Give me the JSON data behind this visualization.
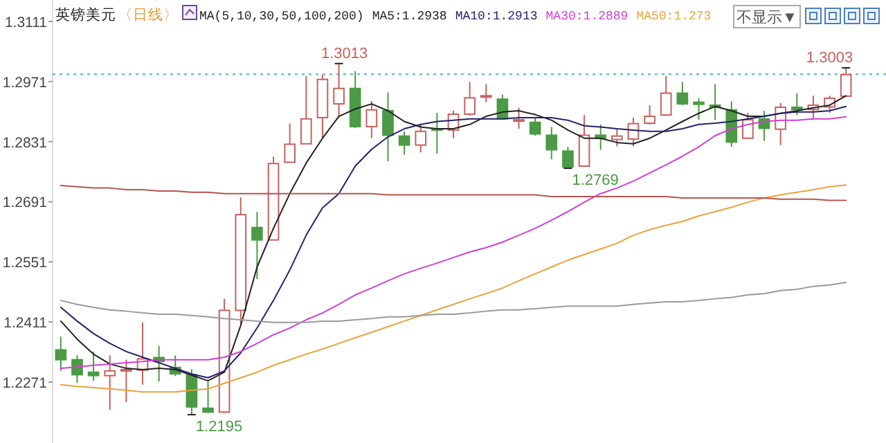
{
  "chart_data": {
    "type": "candlestick",
    "title": "英镑美元",
    "subtitle": "〈日线〉",
    "legend_title": "MA(5,10,30,50,100,200)",
    "legend": "top",
    "categories": [
      null,
      null,
      null,
      null,
      null,
      null,
      null,
      null,
      null,
      null,
      null,
      null,
      null,
      null,
      null,
      null,
      null,
      null,
      null,
      null,
      null,
      null,
      null,
      null,
      null,
      null,
      null,
      null,
      null,
      null,
      null,
      null,
      null,
      null,
      null,
      null,
      null,
      null,
      null,
      null,
      null,
      null,
      null,
      null,
      null,
      null,
      null,
      null,
      null
    ],
    "ohlc": [
      [
        1.2346,
        1.2377,
        1.2297,
        1.2323
      ],
      [
        1.2323,
        1.2333,
        1.2269,
        1.2288
      ],
      [
        1.2294,
        1.2342,
        1.2274,
        1.2286
      ],
      [
        1.2286,
        1.2333,
        1.2206,
        1.2297
      ],
      [
        1.2297,
        1.2323,
        1.2224,
        1.23
      ],
      [
        1.2299,
        1.241,
        1.2265,
        1.2325
      ],
      [
        1.2328,
        1.2355,
        1.2272,
        1.2319
      ],
      [
        1.2305,
        1.2333,
        1.2285,
        1.229
      ],
      [
        1.2288,
        1.2301,
        1.2195,
        1.2213
      ],
      [
        1.221,
        1.2272,
        1.2199,
        1.2201
      ],
      [
        1.2201,
        1.2465,
        1.2199,
        1.2438
      ],
      [
        1.2438,
        1.2701,
        1.2406,
        1.2661
      ],
      [
        1.2631,
        1.2667,
        1.2511,
        1.2602
      ],
      [
        1.2602,
        1.2796,
        1.2602,
        1.278
      ],
      [
        1.2783,
        1.2873,
        1.2783,
        1.2825
      ],
      [
        1.2826,
        1.2984,
        1.2826,
        1.2884
      ],
      [
        1.2887,
        1.2987,
        1.2839,
        1.2976
      ],
      [
        1.2919,
        1.3013,
        1.2887,
        1.2955
      ],
      [
        1.2955,
        1.2995,
        1.2863,
        1.2866
      ],
      [
        1.2866,
        1.2926,
        1.2839,
        1.2905
      ],
      [
        1.2903,
        1.2946,
        1.2785,
        1.2846
      ],
      [
        1.2844,
        1.2855,
        1.2801,
        1.2823
      ],
      [
        1.2823,
        1.2871,
        1.2806,
        1.2855
      ],
      [
        1.2861,
        1.2898,
        1.2803,
        1.2858
      ],
      [
        1.2858,
        1.2904,
        1.2839,
        1.2895
      ],
      [
        1.2895,
        1.297,
        1.2892,
        1.2933
      ],
      [
        1.2936,
        1.2965,
        1.2923,
        1.2938
      ],
      [
        1.293,
        1.2941,
        1.2882,
        1.2884
      ],
      [
        1.2879,
        1.291,
        1.2861,
        1.2882
      ],
      [
        1.2876,
        1.2887,
        1.2845,
        1.2849
      ],
      [
        1.2846,
        1.2865,
        1.279,
        1.2812
      ],
      [
        1.2809,
        1.2819,
        1.2769,
        1.2772
      ],
      [
        1.2774,
        1.2893,
        1.2774,
        1.2846
      ],
      [
        1.2846,
        1.2871,
        1.2812,
        1.2839
      ],
      [
        1.2836,
        1.2861,
        1.282,
        1.2844
      ],
      [
        1.2837,
        1.2887,
        1.282,
        1.2873
      ],
      [
        1.2874,
        1.2916,
        1.2871,
        1.289
      ],
      [
        1.2893,
        1.2984,
        1.2891,
        1.2944
      ],
      [
        1.2944,
        1.297,
        1.2916,
        1.2919
      ],
      [
        1.2923,
        1.2932,
        1.2882,
        1.2918
      ],
      [
        1.2916,
        1.2965,
        1.2882,
        1.2911
      ],
      [
        1.2905,
        1.2925,
        1.2819,
        1.283
      ],
      [
        1.2839,
        1.2898,
        1.2839,
        1.2882
      ],
      [
        1.2884,
        1.2903,
        1.2833,
        1.2862
      ],
      [
        1.286,
        1.2921,
        1.2823,
        1.2911
      ],
      [
        1.2911,
        1.2944,
        1.2893,
        1.2906
      ],
      [
        1.2906,
        1.2938,
        1.2882,
        1.2916
      ],
      [
        1.2912,
        1.2938,
        1.2898,
        1.2932
      ],
      [
        1.2937,
        1.3003,
        1.2935,
        1.2987
      ]
    ],
    "colors": [
      "#4c9a45",
      "#4c9a45",
      "#4c9a45",
      "#c8615e",
      "#c8615e",
      "#c8615e",
      "#4c9a45",
      "#4c9a45",
      "#4c9a45",
      "#4c9a45",
      "#c8615e",
      "#c8615e",
      "#4c9a45",
      "#c8615e",
      "#c8615e",
      "#c8615e",
      "#c8615e",
      "#c8615e",
      "#4c9a45",
      "#c8615e",
      "#4c9a45",
      "#4c9a45",
      "#c8615e",
      "#4c9a45",
      "#c8615e",
      "#c8615e",
      "#c8615e",
      "#4c9a45",
      "#c8615e",
      "#4c9a45",
      "#4c9a45",
      "#4c9a45",
      "#c8615e",
      "#4c9a45",
      "#c8615e",
      "#c8615e",
      "#c8615e",
      "#c8615e",
      "#4c9a45",
      "#4c9a45",
      "#4c9a45",
      "#4c9a45",
      "#c8615e",
      "#4c9a45",
      "#c8615e",
      "#4c9a45",
      "#c8615e",
      "#c8615e",
      "#c8615e"
    ],
    "series": [
      {
        "type": "line",
        "name": "MA5:1.2938",
        "color": "#222222",
        "values": [
          1.2413,
          1.2371,
          1.2336,
          1.2313,
          1.2303,
          1.23,
          1.2303,
          1.23,
          1.2287,
          1.2274,
          1.2294,
          1.2403,
          1.2539,
          1.2629,
          1.271,
          1.2781,
          1.2839,
          1.289,
          1.2907,
          1.2919,
          1.2903,
          1.2878,
          1.2865,
          1.2861,
          1.2861,
          1.2871,
          1.289,
          1.29,
          1.2903,
          1.2894,
          1.2881,
          1.2858,
          1.2839,
          1.2839,
          1.2829,
          1.2826,
          1.2839,
          1.2858,
          1.2878,
          1.2897,
          1.2913,
          1.2903,
          1.289,
          1.289,
          1.2897,
          1.2903,
          1.291,
          1.2916,
          1.2938
        ]
      },
      {
        "type": "line",
        "name": "MA10:1.2913",
        "color": "#23236e",
        "values": [
          1.2445,
          1.2413,
          1.2384,
          1.2361,
          1.2342,
          1.2329,
          1.2316,
          1.2303,
          1.229,
          1.2281,
          1.2297,
          1.2339,
          1.2397,
          1.2461,
          1.2532,
          1.2613,
          1.2677,
          1.271,
          1.2774,
          1.2813,
          1.2842,
          1.2861,
          1.2871,
          1.2878,
          1.2881,
          1.2884,
          1.2884,
          1.2884,
          1.2887,
          1.2887,
          1.2887,
          1.2881,
          1.2868,
          1.2865,
          1.2861,
          1.2858,
          1.2855,
          1.2855,
          1.2861,
          1.2871,
          1.2874,
          1.2878,
          1.2884,
          1.289,
          1.2897,
          1.29,
          1.29,
          1.2903,
          1.2913
        ]
      },
      {
        "type": "line",
        "name": "MA30:1.2889",
        "color": "#d23fd2",
        "values": [
          1.2303,
          1.2306,
          1.231,
          1.2313,
          1.2316,
          1.2319,
          1.2323,
          1.2323,
          1.2323,
          1.2323,
          1.2329,
          1.2342,
          1.2361,
          1.2381,
          1.2397,
          1.2416,
          1.2432,
          1.2452,
          1.2474,
          1.249,
          1.2507,
          1.2523,
          1.2536,
          1.2548,
          1.2561,
          1.2574,
          1.2584,
          1.2597,
          1.2613,
          1.2629,
          1.2648,
          1.2668,
          1.269,
          1.271,
          1.2723,
          1.2739,
          1.2758,
          1.2777,
          1.2797,
          1.2819,
          1.2845,
          1.2861,
          1.2871,
          1.2878,
          1.2881,
          1.2881,
          1.2884,
          1.2884,
          1.2889
        ]
      },
      {
        "type": "line",
        "name": "MA50:1.273",
        "color": "#eba23c",
        "values": [
          1.2265,
          1.2261,
          1.2258,
          1.2255,
          1.2252,
          1.2248,
          1.2248,
          1.2248,
          1.2252,
          1.2255,
          1.2268,
          1.2281,
          1.2294,
          1.231,
          1.2323,
          1.2336,
          1.2348,
          1.2361,
          1.2374,
          1.2387,
          1.24,
          1.2413,
          1.2426,
          1.2439,
          1.2452,
          1.2465,
          1.2477,
          1.249,
          1.2507,
          1.2523,
          1.2539,
          1.2555,
          1.2568,
          1.2581,
          1.2594,
          1.2613,
          1.2626,
          1.2636,
          1.2645,
          1.2658,
          1.2668,
          1.2678,
          1.269,
          1.27,
          1.2707,
          1.2713,
          1.2719,
          1.2726,
          1.273
        ]
      },
      {
        "type": "line",
        "color": "#9a9a9a",
        "values": [
          1.2461,
          1.2452,
          1.2445,
          1.2439,
          1.2436,
          1.2432,
          1.2429,
          1.2429,
          1.2426,
          1.2423,
          1.2419,
          1.2416,
          1.2413,
          1.241,
          1.241,
          1.241,
          1.2413,
          1.2413,
          1.2416,
          1.2419,
          1.2423,
          1.2423,
          1.2426,
          1.2429,
          1.2429,
          1.2432,
          1.2436,
          1.2439,
          1.2439,
          1.2442,
          1.2445,
          1.2448,
          1.2448,
          1.2448,
          1.2448,
          1.2452,
          1.2455,
          1.2458,
          1.2458,
          1.2461,
          1.2465,
          1.2468,
          1.2474,
          1.2477,
          1.2484,
          1.2487,
          1.2494,
          1.2497,
          1.2503
        ]
      },
      {
        "type": "line",
        "color": "#b8544f",
        "values": [
          1.2729,
          1.2726,
          1.2723,
          1.2723,
          1.2719,
          1.2719,
          1.2716,
          1.2716,
          1.2713,
          1.2713,
          1.271,
          1.271,
          1.271,
          1.271,
          1.271,
          1.271,
          1.271,
          1.271,
          1.271,
          1.271,
          1.2707,
          1.2707,
          1.2707,
          1.2707,
          1.2707,
          1.2707,
          1.2707,
          1.2707,
          1.2707,
          1.2707,
          1.2703,
          1.2703,
          1.2703,
          1.2703,
          1.2703,
          1.2703,
          1.2703,
          1.2703,
          1.27,
          1.27,
          1.27,
          1.27,
          1.27,
          1.27,
          1.2697,
          1.2697,
          1.2697,
          1.2694,
          1.2694
        ]
      }
    ],
    "ylim": [
      1.2129,
      1.3161
    ],
    "yticks": [
      1.2271,
      1.2411,
      1.2551,
      1.2691,
      1.2831,
      1.2971,
      1.3111
    ],
    "ref_lines": [
      {
        "axis": "y",
        "value": 1.2988,
        "color": "#4fb3bf",
        "line_style": "dotted"
      }
    ],
    "annotations": [
      {
        "text": "1.3013",
        "y": 1.3013
      },
      {
        "text": "1.2195",
        "y": 1.2195
      },
      {
        "text": "1.2769",
        "y": 1.2769
      },
      {
        "text": "1.3003",
        "y": 1.3003
      },
      "不显示▼"
    ]
  }
}
